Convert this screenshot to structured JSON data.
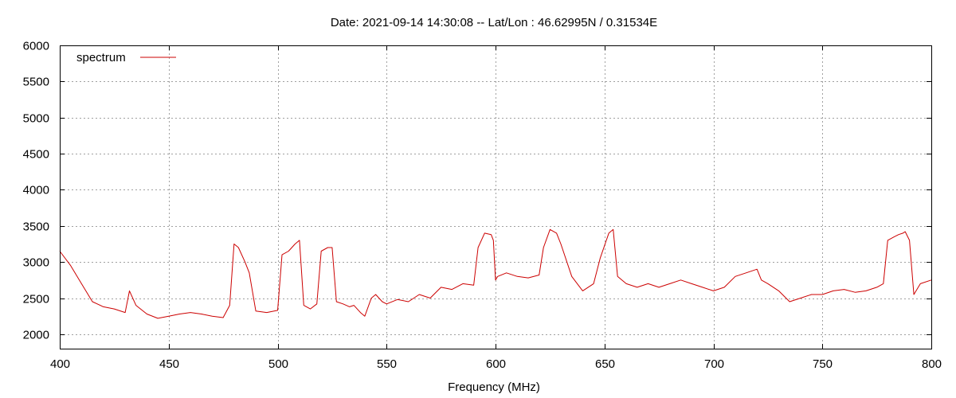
{
  "chart_data": {
    "type": "line",
    "title": "Date: 2021-09-14 14:30:08  --  Lat/Lon : 46.62995N / 0.31534E",
    "xlabel": "Frequency (MHz)",
    "ylabel": "",
    "xlim": [
      400,
      800
    ],
    "ylim": [
      1800,
      6000
    ],
    "xticks": [
      400,
      450,
      500,
      550,
      600,
      650,
      700,
      750,
      800
    ],
    "yticks": [
      2000,
      2500,
      3000,
      3500,
      4000,
      4500,
      5000,
      5500,
      6000
    ],
    "grid": true,
    "legend_position": "top-left",
    "colors": {
      "line": "#cc0000",
      "grid": "#a0a0a0",
      "frame": "#000000"
    },
    "series": [
      {
        "name": "spectrum",
        "x": [
          400,
          405,
          410,
          415,
          420,
          425,
          430,
          432,
          435,
          440,
          445,
          450,
          455,
          460,
          465,
          470,
          475,
          478,
          480,
          482,
          485,
          487,
          490,
          495,
          500,
          502,
          505,
          508,
          510,
          512,
          515,
          518,
          520,
          523,
          525,
          527,
          530,
          533,
          535,
          538,
          540,
          543,
          545,
          548,
          550,
          555,
          560,
          565,
          570,
          575,
          580,
          585,
          590,
          592,
          595,
          598,
          599,
          600,
          601,
          605,
          610,
          615,
          620,
          622,
          625,
          628,
          630,
          635,
          640,
          645,
          648,
          652,
          654,
          656,
          660,
          665,
          670,
          675,
          680,
          685,
          690,
          695,
          700,
          705,
          710,
          715,
          720,
          722,
          725,
          730,
          735,
          740,
          745,
          750,
          755,
          760,
          765,
          770,
          775,
          778,
          780,
          783,
          785,
          787,
          788,
          790,
          792,
          795,
          800
        ],
        "values": [
          3150,
          2950,
          2700,
          2450,
          2380,
          2350,
          2300,
          2600,
          2400,
          2280,
          2220,
          2250,
          2280,
          2300,
          2280,
          2250,
          2230,
          2400,
          3250,
          3200,
          3000,
          2850,
          2320,
          2300,
          2330,
          3100,
          3150,
          3250,
          3300,
          2400,
          2350,
          2420,
          3150,
          3200,
          3200,
          2450,
          2420,
          2380,
          2400,
          2300,
          2250,
          2500,
          2550,
          2450,
          2420,
          2480,
          2450,
          2550,
          2500,
          2650,
          2620,
          2700,
          2680,
          3200,
          3400,
          3380,
          3300,
          2750,
          2800,
          2850,
          2800,
          2780,
          2820,
          3200,
          3450,
          3400,
          3250,
          2800,
          2600,
          2700,
          3050,
          3400,
          3450,
          2800,
          2700,
          2650,
          2700,
          2650,
          2700,
          2750,
          2700,
          2650,
          2600,
          2650,
          2800,
          2850,
          2900,
          2750,
          2700,
          2600,
          2450,
          2500,
          2550,
          2550,
          2600,
          2620,
          2580,
          2600,
          2650,
          2700,
          3300,
          3350,
          3380,
          3400,
          3420,
          3300,
          2550,
          2700,
          2750
        ]
      }
    ]
  }
}
